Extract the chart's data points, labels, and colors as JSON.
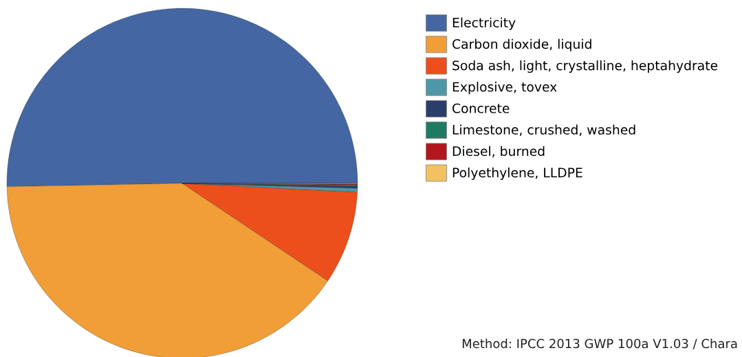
{
  "chart_data": {
    "type": "pie",
    "categories": [
      "Electricity",
      "Carbon dioxide, liquid",
      "Soda ash, light, crystalline, heptahydrate",
      "Explosive, tovex",
      "Concrete",
      "Limestone, crushed, washed",
      "Diesel, burned",
      "Polyethylene, LLDPE"
    ],
    "values": [
      50.3,
      40.3,
      8.6,
      0.35,
      0.2,
      0.1,
      0.1,
      0.05
    ],
    "colors": [
      "#4466a3",
      "#f19e38",
      "#ec4f1b",
      "#4d98a8",
      "#2b3e6b",
      "#1f7a63",
      "#b1171c",
      "#f2c262"
    ],
    "legend": "right",
    "annotations": [
      "Method: IPCC 2013 GWP 100a V1.03 / Chara"
    ]
  }
}
